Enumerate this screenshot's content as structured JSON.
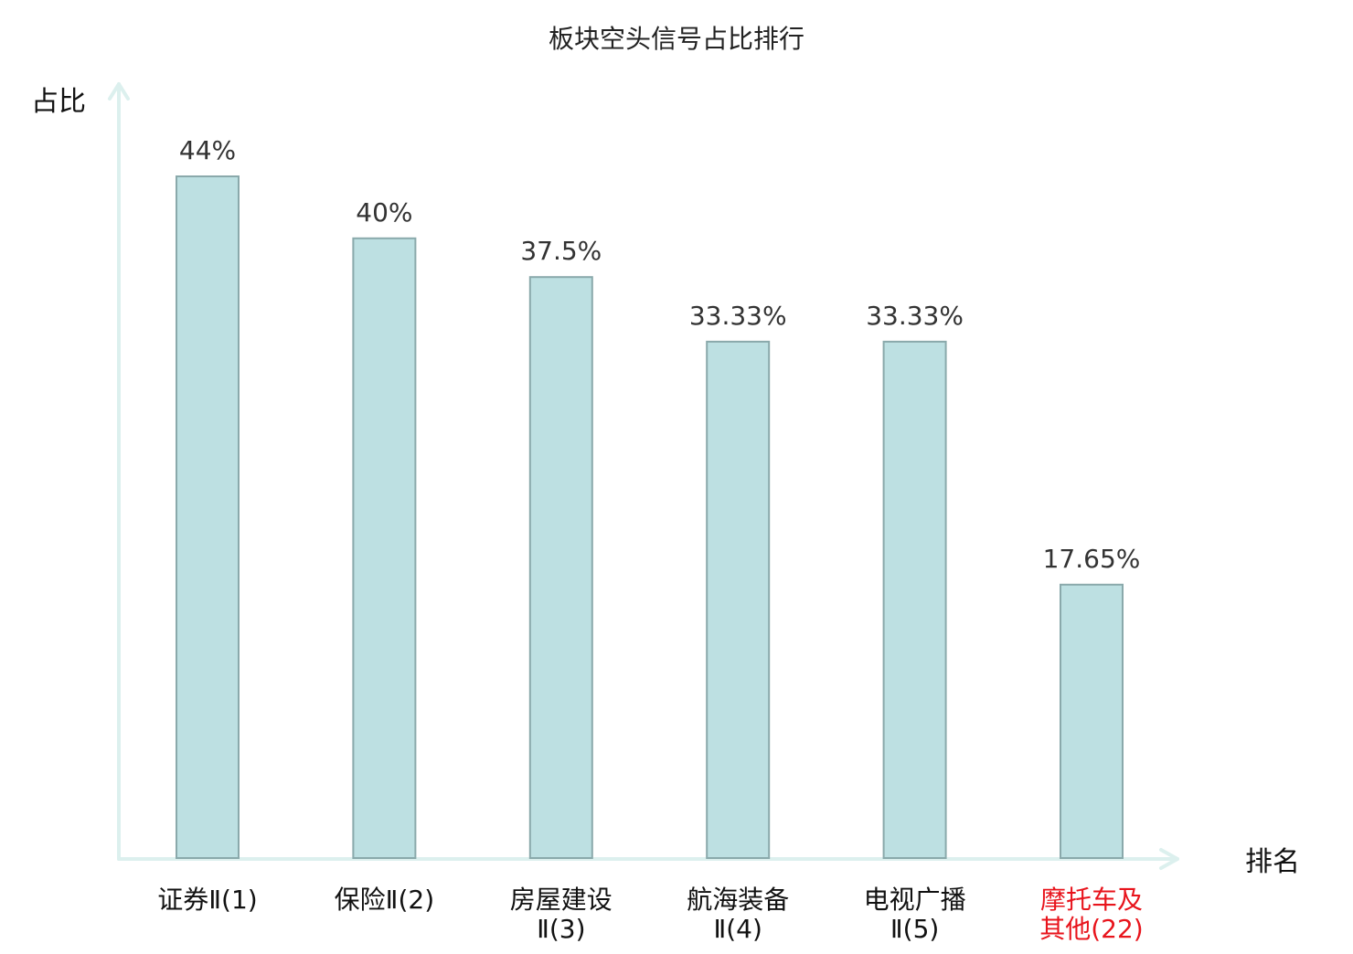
{
  "chart_data": {
    "type": "bar",
    "title": "板块空头信号占比排行",
    "ylabel": "占比",
    "xlabel": "排名",
    "grid": false,
    "legend": "none",
    "ylim": [
      0,
      50
    ],
    "categories": [
      {
        "lines": [
          "证券Ⅱ(1)"
        ],
        "highlight": false
      },
      {
        "lines": [
          "保险Ⅱ(2)"
        ],
        "highlight": false
      },
      {
        "lines": [
          "房屋建设",
          "Ⅱ(3)"
        ],
        "highlight": false
      },
      {
        "lines": [
          "航海装备",
          "Ⅱ(4)"
        ],
        "highlight": false
      },
      {
        "lines": [
          "电视广播",
          "Ⅱ(5)"
        ],
        "highlight": false
      },
      {
        "lines": [
          "摩托车及",
          "其他(22)"
        ],
        "highlight": true
      }
    ],
    "values": [
      44,
      40,
      37.5,
      33.33,
      33.33,
      17.65
    ],
    "value_labels": [
      "44%",
      "40%",
      "37.5%",
      "33.33%",
      "33.33%",
      "17.65%"
    ],
    "colors": {
      "bar_fill": "#bde0e2",
      "bar_stroke": "#8aa9ab",
      "axis": "#dcf0ee",
      "label_text": "#111111",
      "highlight_text": "#e8141c",
      "value_text": "#333333"
    }
  }
}
